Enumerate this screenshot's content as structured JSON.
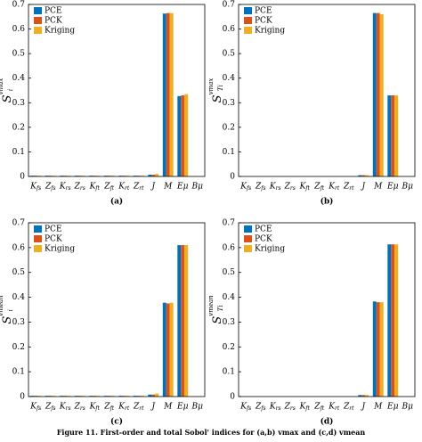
{
  "chart_data": [
    {
      "type": "bar",
      "caption": "(a)",
      "ylabel": {
        "base": "S",
        "sub": "i",
        "sup": "vmax"
      },
      "categories": [
        "Kfs",
        "Zfs",
        "Krs",
        "Zrs",
        "Kft",
        "Zft",
        "Krt",
        "Zrt",
        "J",
        "M",
        "Eμ",
        "Bμ"
      ],
      "ylim": [
        0,
        0.7
      ],
      "yticks": [
        0,
        0.1,
        0.2,
        0.3,
        0.4,
        0.5,
        0.6,
        0.7
      ],
      "legend": "upper left",
      "series": [
        {
          "name": "PCE",
          "color": "#0072bd",
          "values": [
            0.003,
            0.003,
            0.003,
            0.003,
            0.003,
            0.003,
            0.003,
            0.003,
            0.007,
            0.663,
            0.327,
            0
          ]
        },
        {
          "name": "PCK",
          "color": "#d95319",
          "values": [
            0.003,
            0.003,
            0.003,
            0.003,
            0.003,
            0.003,
            0.003,
            0.003,
            0.007,
            0.665,
            0.33,
            0
          ]
        },
        {
          "name": "Kriging",
          "color": "#edb120",
          "values": [
            0.003,
            0.003,
            0.003,
            0.003,
            0.003,
            0.003,
            0.003,
            0.003,
            0.01,
            0.665,
            0.335,
            0
          ]
        }
      ]
    },
    {
      "type": "bar",
      "caption": "(b)",
      "ylabel": {
        "base": "S",
        "sub": "Ti",
        "sup": "vmax"
      },
      "categories": [
        "Kfs",
        "Zfs",
        "Krs",
        "Zrs",
        "Kft",
        "Zft",
        "Krt",
        "Zrt",
        "J",
        "M",
        "Eμ",
        "Bμ"
      ],
      "ylim": [
        0,
        0.7
      ],
      "yticks": [
        0,
        0.1,
        0.2,
        0.3,
        0.4,
        0.5,
        0.6,
        0.7
      ],
      "legend": "upper left",
      "series": [
        {
          "name": "PCE",
          "color": "#0072bd",
          "values": [
            0,
            0,
            0,
            0,
            0,
            0,
            0,
            0,
            0.005,
            0.665,
            0.33,
            0
          ]
        },
        {
          "name": "PCK",
          "color": "#d95319",
          "values": [
            0,
            0,
            0,
            0,
            0,
            0,
            0,
            0,
            0.005,
            0.665,
            0.33,
            0
          ]
        },
        {
          "name": "Kriging",
          "color": "#edb120",
          "values": [
            0,
            0,
            0,
            0,
            0,
            0,
            0,
            0,
            0.005,
            0.66,
            0.33,
            0
          ]
        }
      ]
    },
    {
      "type": "bar",
      "caption": "(c)",
      "ylabel": {
        "base": "S",
        "sub": "i",
        "sup": "vmean"
      },
      "categories": [
        "Kfs",
        "Zfs",
        "Krs",
        "Zrs",
        "Kft",
        "Zft",
        "Krt",
        "Zrt",
        "J",
        "M",
        "Eμ",
        "Bμ"
      ],
      "ylim": [
        0,
        0.7
      ],
      "yticks": [
        0,
        0.1,
        0.2,
        0.3,
        0.4,
        0.5,
        0.6,
        0.7
      ],
      "legend": "upper left",
      "series": [
        {
          "name": "PCE",
          "color": "#0072bd",
          "values": [
            0.003,
            0.003,
            0.003,
            0.003,
            0.003,
            0.003,
            0.003,
            0.003,
            0.008,
            0.378,
            0.61,
            0
          ]
        },
        {
          "name": "PCK",
          "color": "#d95319",
          "values": [
            0.003,
            0.003,
            0.003,
            0.003,
            0.003,
            0.003,
            0.003,
            0.003,
            0.008,
            0.375,
            0.61,
            0
          ]
        },
        {
          "name": "Kriging",
          "color": "#edb120",
          "values": [
            0.003,
            0.003,
            0.003,
            0.003,
            0.003,
            0.003,
            0.003,
            0.003,
            0.012,
            0.378,
            0.61,
            0
          ]
        }
      ]
    },
    {
      "type": "bar",
      "caption": "(d)",
      "ylabel": {
        "base": "S",
        "sub": "Ti",
        "sup": "vmean"
      },
      "categories": [
        "Kfs",
        "Zfs",
        "Krs",
        "Zrs",
        "Kft",
        "Zft",
        "Krt",
        "Zrt",
        "J",
        "M",
        "Eμ",
        "Bμ"
      ],
      "ylim": [
        0,
        0.7
      ],
      "yticks": [
        0,
        0.1,
        0.2,
        0.3,
        0.4,
        0.5,
        0.6,
        0.7
      ],
      "legend": "upper left",
      "series": [
        {
          "name": "PCE",
          "color": "#0072bd",
          "values": [
            0,
            0,
            0,
            0,
            0,
            0,
            0,
            0,
            0.006,
            0.383,
            0.613,
            0
          ]
        },
        {
          "name": "PCK",
          "color": "#d95319",
          "values": [
            0,
            0,
            0,
            0,
            0,
            0,
            0,
            0,
            0.006,
            0.38,
            0.613,
            0
          ]
        },
        {
          "name": "Kriging",
          "color": "#edb120",
          "values": [
            0,
            0,
            0,
            0,
            0,
            0,
            0,
            0,
            0.006,
            0.38,
            0.613,
            0
          ]
        }
      ]
    }
  ],
  "figure_caption": "Figure 11. First-order and total Sobol' indices for (a,b) vmax and (c,d) vmean"
}
